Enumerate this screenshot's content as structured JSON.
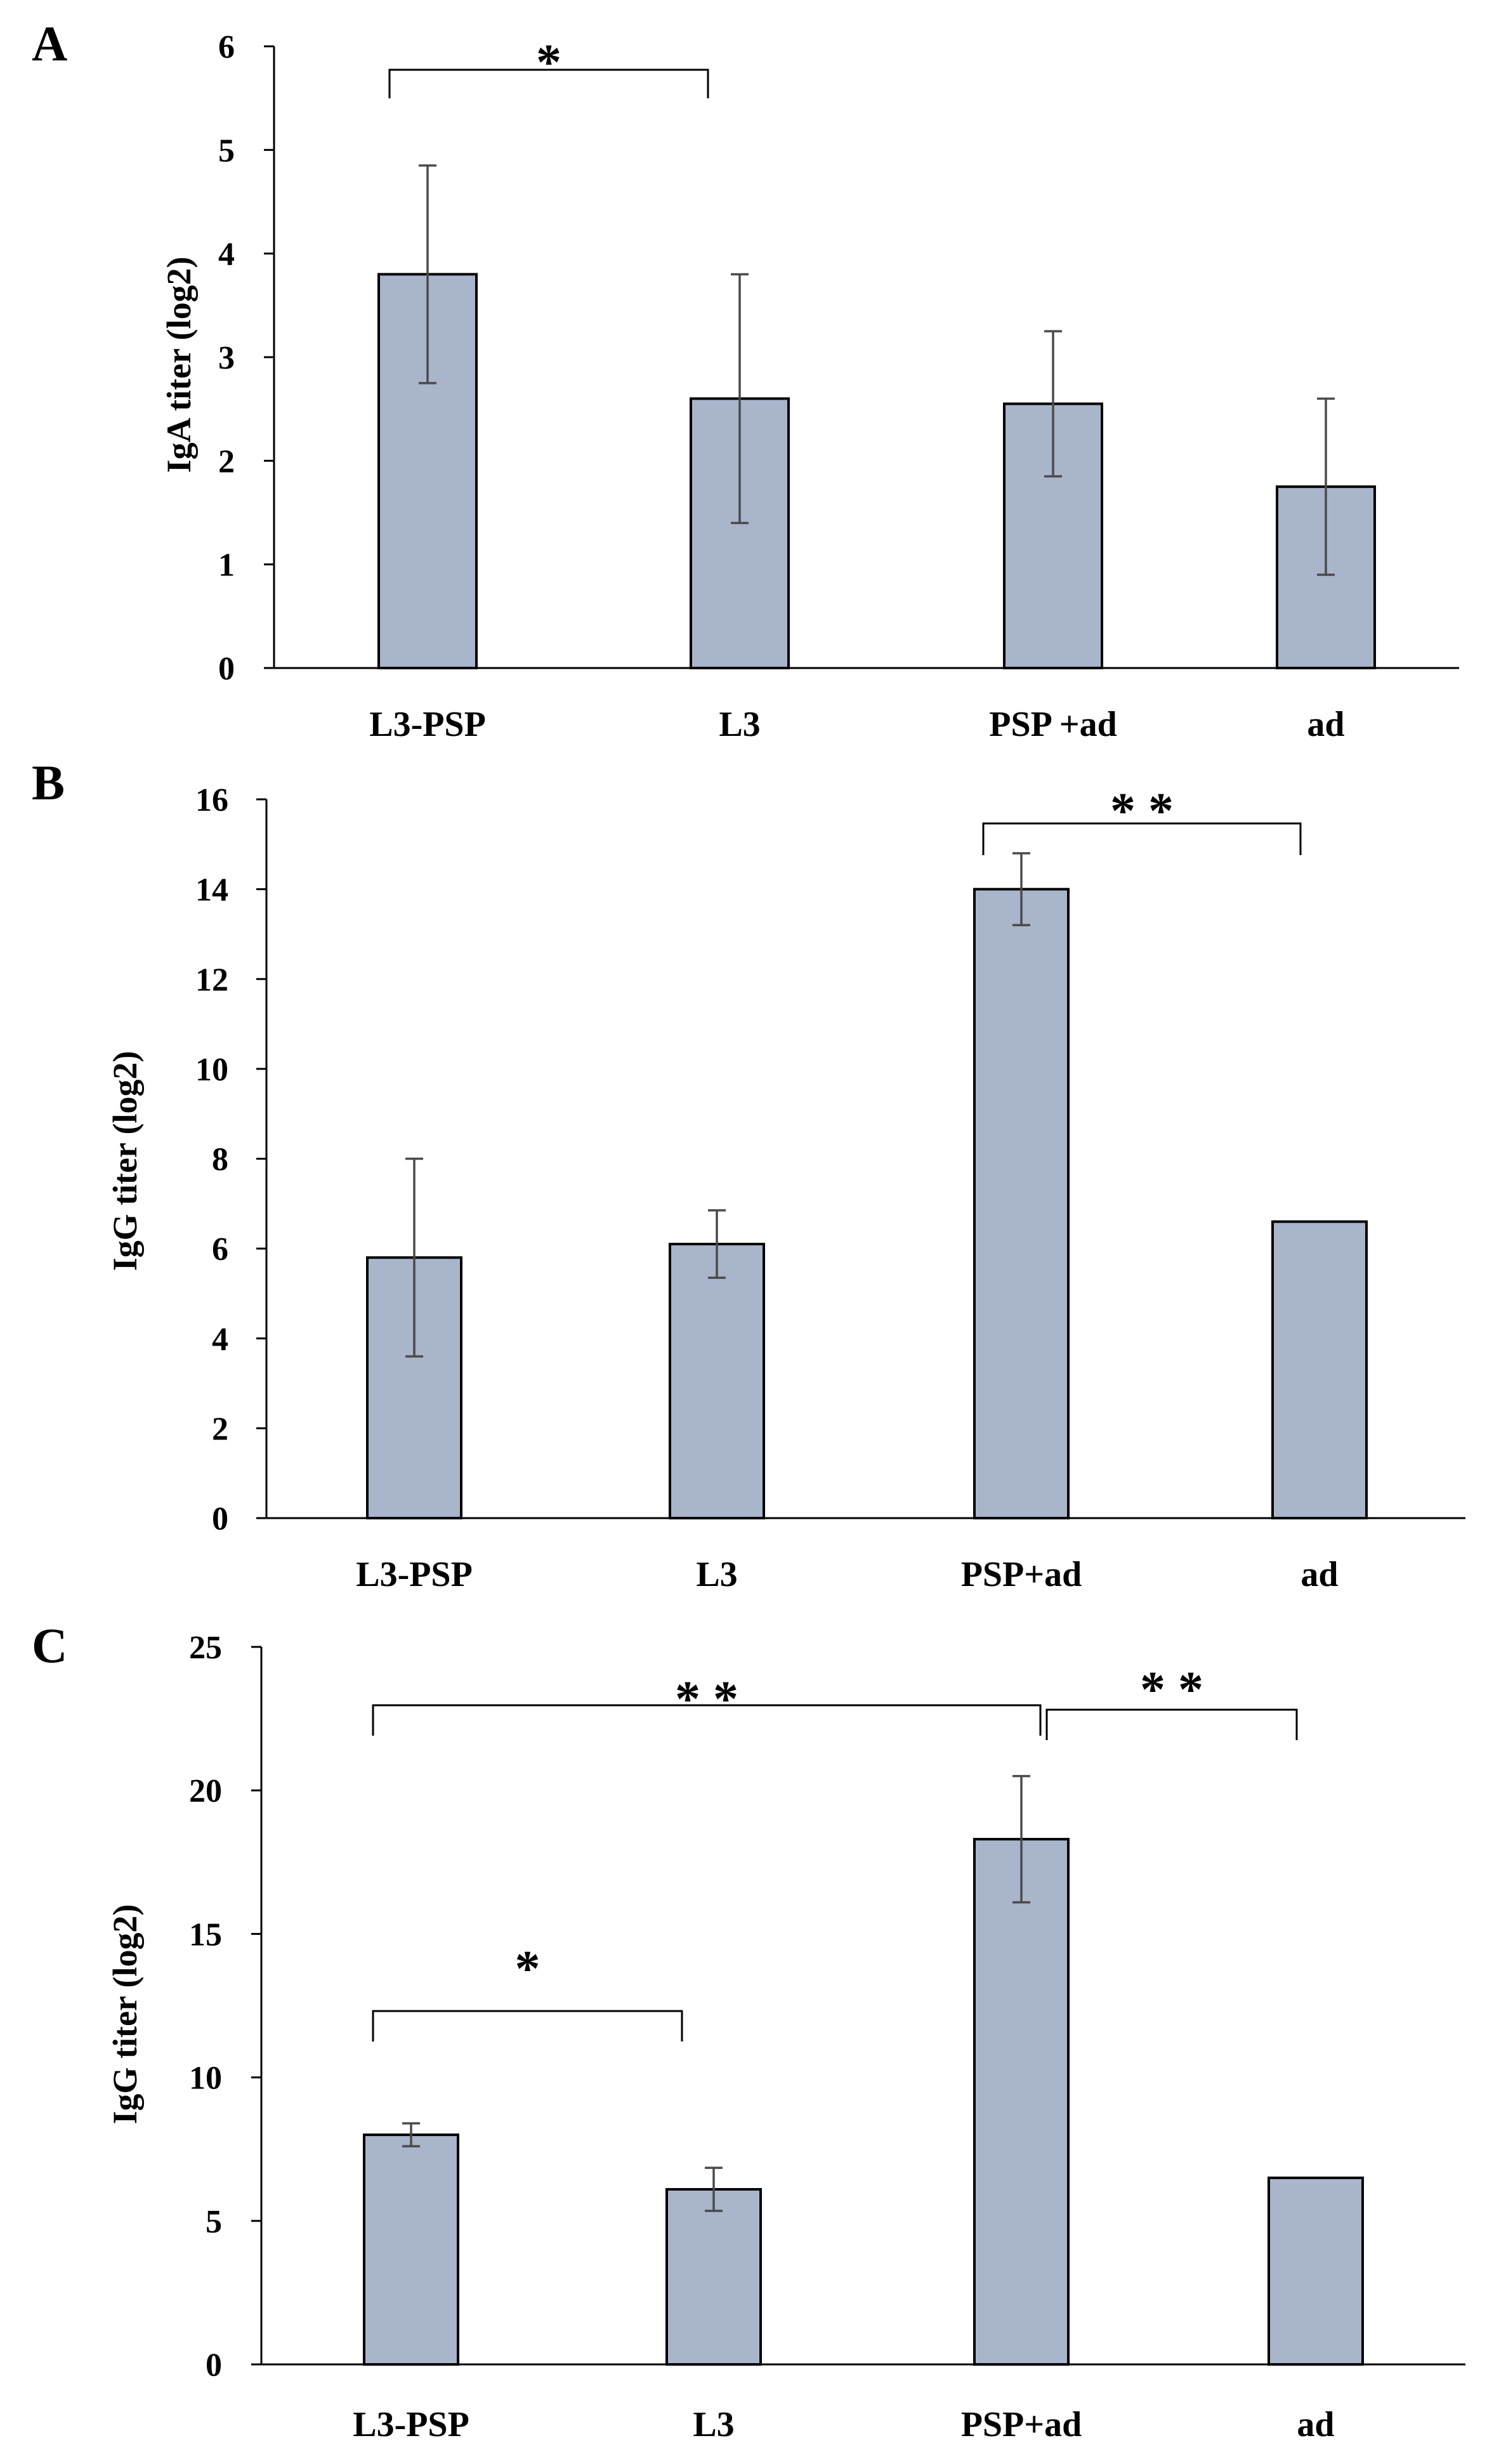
{
  "chart_data": [
    {
      "type": "bar",
      "panel": "A",
      "categories": [
        "L3-PSP",
        "L3",
        "PSP +ad",
        "ad"
      ],
      "values": [
        3.8,
        2.6,
        2.55,
        1.75
      ],
      "errors": [
        1.05,
        1.2,
        0.7,
        0.85
      ],
      "ylabel": "IgA titer (log2)",
      "xlabel": "",
      "ylim": [
        0,
        6
      ],
      "yticks": [
        0,
        1,
        2,
        3,
        4,
        5,
        6
      ],
      "significance": [
        {
          "from": 0,
          "to": 1,
          "label": "*"
        }
      ]
    },
    {
      "type": "bar",
      "panel": "B",
      "categories": [
        "L3-PSP",
        "L3",
        "PSP+ad",
        "ad"
      ],
      "values": [
        5.8,
        6.1,
        14.0,
        6.6
      ],
      "errors": [
        2.2,
        0.75,
        0.8,
        0
      ],
      "ylabel": "IgG titer (log2)",
      "xlabel": "",
      "ylim": [
        0,
        16
      ],
      "yticks": [
        0,
        2,
        4,
        6,
        8,
        10,
        12,
        14,
        16
      ],
      "significance": [
        {
          "from": 2,
          "to": 3,
          "label": "* *"
        }
      ]
    },
    {
      "type": "bar",
      "panel": "C",
      "categories": [
        "L3-PSP",
        "L3",
        "PSP+ad",
        "ad"
      ],
      "values": [
        8.0,
        6.1,
        18.3,
        6.5
      ],
      "errors": [
        0.4,
        0.75,
        2.2,
        0
      ],
      "ylabel": "IgG titer (log2)",
      "xlabel": "",
      "ylim": [
        0,
        25
      ],
      "yticks": [
        0,
        5,
        10,
        15,
        20,
        25
      ],
      "significance": [
        {
          "from": 0,
          "to": 2,
          "label": "* *"
        },
        {
          "from": 2,
          "to": 3,
          "label": "* *"
        },
        {
          "from": 0,
          "to": 1,
          "label": "*"
        }
      ]
    }
  ]
}
